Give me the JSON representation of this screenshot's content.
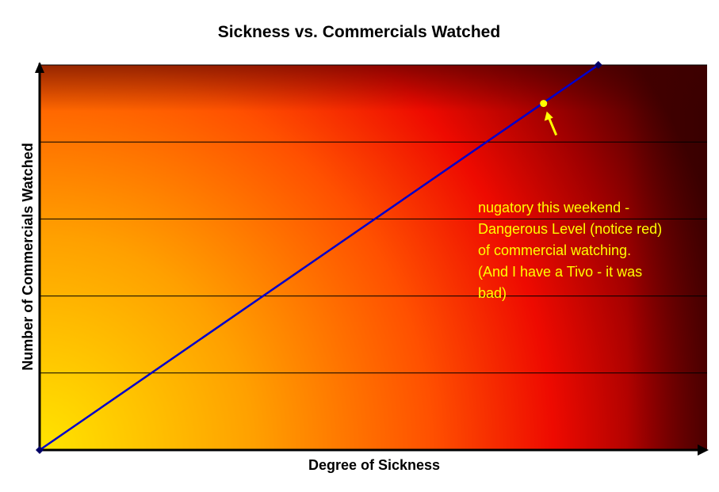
{
  "chart_data": {
    "type": "line",
    "title": "Sickness vs. Commercials Watched",
    "xlabel": "Degree of Sickness",
    "ylabel": "Number of Commercials Watched",
    "xlim": [
      0,
      10
    ],
    "ylim": [
      0,
      5
    ],
    "grid": "horizontal",
    "tick_labels_shown": false,
    "series": [
      {
        "x": [
          0,
          8.37
        ],
        "values": [
          0,
          5
        ],
        "color": "#0000cc"
      }
    ],
    "highlight_point": {
      "x": 7.55,
      "y": 4.5,
      "color": "#ffff00"
    },
    "annotation": {
      "lines": [
        "nugatory this weekend -",
        "Dangerous Level (notice red)",
        "of commercial watching.",
        "(And I have a Tivo - it was",
        "bad)"
      ],
      "color": "#ffff00"
    },
    "colors": {
      "background_gradient": [
        "#ffe000",
        "#ff8c00",
        "#ee0a00",
        "#4a0000"
      ],
      "line": "#0000cc",
      "axis": "#000000",
      "grid": "#000000"
    }
  }
}
